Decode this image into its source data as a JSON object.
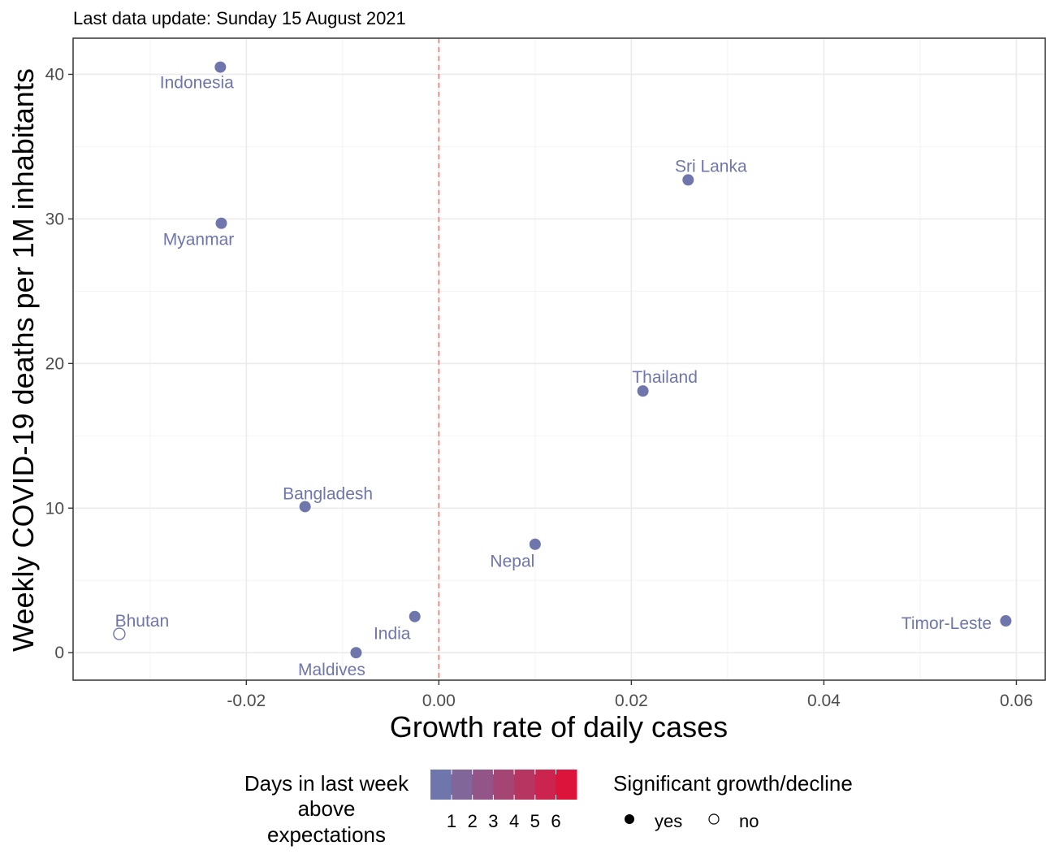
{
  "chart_data": {
    "type": "scatter",
    "subtitle": "Last data update: Sunday 15 August 2021",
    "xlabel": "Growth rate of daily cases",
    "ylabel": "Weekly COVID-19 deaths per 1M inhabitants",
    "xlim": [
      -0.038,
      0.063
    ],
    "ylim": [
      -1.9,
      42.5
    ],
    "x_ticks": [
      -0.02,
      0.0,
      0.02,
      0.04,
      0.06
    ],
    "x_tick_labels": [
      "-0.02",
      "0.00",
      "0.02",
      "0.04",
      "0.06"
    ],
    "y_ticks": [
      0,
      10,
      20,
      30,
      40
    ],
    "y_tick_labels": [
      "0",
      "10",
      "20",
      "30",
      "40"
    ],
    "reference_line": {
      "x": 0.0,
      "style": "dashed",
      "color": "#f8766d"
    },
    "grid": true,
    "points": [
      {
        "label": "Indonesia",
        "x": -0.0227,
        "y": 40.5,
        "significant": true,
        "days_above": 1
      },
      {
        "label": "Myanmar",
        "x": -0.0226,
        "y": 29.7,
        "significant": true,
        "days_above": 1
      },
      {
        "label": "Sri Lanka",
        "x": 0.0259,
        "y": 32.7,
        "significant": true,
        "days_above": 1
      },
      {
        "label": "Thailand",
        "x": 0.0212,
        "y": 18.1,
        "significant": true,
        "days_above": 1
      },
      {
        "label": "Bangladesh",
        "x": -0.0139,
        "y": 10.1,
        "significant": true,
        "days_above": 1
      },
      {
        "label": "Nepal",
        "x": 0.01,
        "y": 7.5,
        "significant": true,
        "days_above": 1
      },
      {
        "label": "India",
        "x": -0.0025,
        "y": 2.5,
        "significant": true,
        "days_above": 1
      },
      {
        "label": "Maldives",
        "x": -0.0086,
        "y": 0.0,
        "significant": true,
        "days_above": 1
      },
      {
        "label": "Bhutan",
        "x": -0.0332,
        "y": 1.3,
        "significant": false,
        "days_above": 1
      },
      {
        "label": "Timor-Leste",
        "x": 0.0589,
        "y": 2.2,
        "significant": true,
        "days_above": 1
      }
    ],
    "legend": {
      "placement": "bottom",
      "color_title": [
        "Days in last week",
        "above",
        "expectations"
      ],
      "color_scale": {
        "low": "#6e76ac",
        "high": "#dc143c"
      },
      "color_ticks": [
        "1",
        "2",
        "3",
        "4",
        "5",
        "6"
      ],
      "shape_title": "Significant growth/decline",
      "shape_items": [
        {
          "label": "yes",
          "filled": true
        },
        {
          "label": "no",
          "filled": false
        }
      ]
    },
    "colors": {
      "point": "#6e76ac",
      "label": "#6e76ac",
      "vline": "#f8766d"
    }
  }
}
